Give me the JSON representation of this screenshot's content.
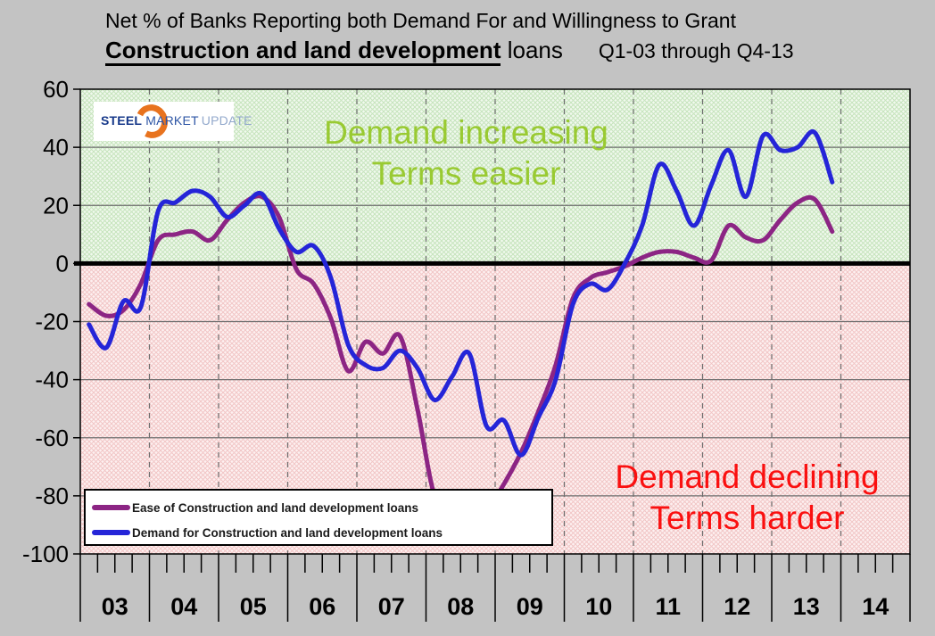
{
  "title": {
    "line1": "Net % of Banks Reporting both Demand For and Willingness to Grant",
    "line2_bold": "Construction and land development",
    "line2_loans": " loans",
    "line2_range": "Q1-03 through Q4-13"
  },
  "logo": {
    "steel": "STEEL",
    "market": "MARKET",
    "update": "UPDATE",
    "colors": {
      "steel": "#17398a",
      "market": "#2d55a5",
      "update": "#93a9cc",
      "crescent": "#e8731e"
    }
  },
  "annotations": {
    "positive": {
      "line1": "Demand increasing",
      "line2": "Terms easier",
      "color": "#99ca32"
    },
    "negative": {
      "line1": "Demand declining",
      "line2": "Terms harder",
      "color": "#fa1010"
    }
  },
  "legend": {
    "note": "swatch colors mirror chart_data.series colors"
  },
  "chart_data": {
    "type": "line",
    "smoothed": true,
    "title": "Net % of Banks Reporting both Demand For and Willingness to Grant Construction and land development loans, Q1-03 through Q4-13",
    "ylim": [
      -100,
      60
    ],
    "ytick_interval": 20,
    "yticks": [
      60,
      40,
      20,
      0,
      -20,
      -40,
      -60,
      -80,
      -100
    ],
    "grid": {
      "horizontal": "solid",
      "vertical": "dashed-at-year-boundaries",
      "zero_line": "thick-black"
    },
    "legend_position": "bottom-left-inside",
    "x_axis": {
      "years": [
        "03",
        "04",
        "05",
        "06",
        "07",
        "08",
        "09",
        "10",
        "11",
        "12",
        "13",
        "14"
      ],
      "quarters_per_year": 4,
      "first_data_quarter": "Q1-03",
      "last_data_quarter": "Q4-13"
    },
    "categories": [
      "Q1-03",
      "Q2-03",
      "Q3-03",
      "Q4-03",
      "Q1-04",
      "Q2-04",
      "Q3-04",
      "Q4-04",
      "Q1-05",
      "Q2-05",
      "Q3-05",
      "Q4-05",
      "Q1-06",
      "Q2-06",
      "Q3-06",
      "Q4-06",
      "Q1-07",
      "Q2-07",
      "Q3-07",
      "Q4-07",
      "Q1-08",
      "Q2-08",
      "Q3-08",
      "Q4-08",
      "Q1-09",
      "Q2-09",
      "Q3-09",
      "Q4-09",
      "Q1-10",
      "Q2-10",
      "Q3-10",
      "Q4-10",
      "Q1-11",
      "Q2-11",
      "Q3-11",
      "Q4-11",
      "Q1-12",
      "Q2-12",
      "Q3-12",
      "Q4-12",
      "Q1-13",
      "Q2-13",
      "Q3-13",
      "Q4-13"
    ],
    "series": [
      {
        "name": "Ease of Construction and land development loans",
        "color": "#8c2584",
        "values": [
          -14,
          -18,
          -16,
          -7,
          8,
          10,
          11,
          8,
          15,
          21,
          23,
          16,
          -2,
          -7,
          -19,
          -37,
          -27,
          -31,
          -25,
          -50,
          -80,
          -84,
          -87,
          -85,
          -76,
          -65,
          -51,
          -35,
          -12,
          -5,
          -3,
          -1,
          2,
          4,
          4,
          2,
          1,
          13,
          9,
          8,
          15,
          21,
          22,
          11
        ]
      },
      {
        "name": "Demand for Construction and land development loans",
        "color": "#2525d8",
        "values": [
          -21,
          -29,
          -13,
          -15,
          18,
          21,
          25,
          23,
          16,
          20,
          24,
          12,
          4,
          6,
          -5,
          -28,
          -35,
          -36,
          -30,
          -36,
          -47,
          -39,
          -31,
          -56,
          -54,
          -66,
          -53,
          -40,
          -14,
          -7,
          -9,
          0,
          13,
          34,
          25,
          13,
          27,
          39,
          23,
          44,
          39,
          40,
          45,
          28
        ]
      }
    ],
    "colors": {
      "page_background": "#c3c3c3",
      "area_above_zero_bg": "#f1f9ee",
      "area_above_zero_hatch": "#c6e4bd",
      "area_below_zero_bg": "#fdf1f1",
      "area_below_zero_hatch": "#f2c6c6",
      "gridline": "#6e6e6e",
      "axis": "#000000"
    }
  }
}
